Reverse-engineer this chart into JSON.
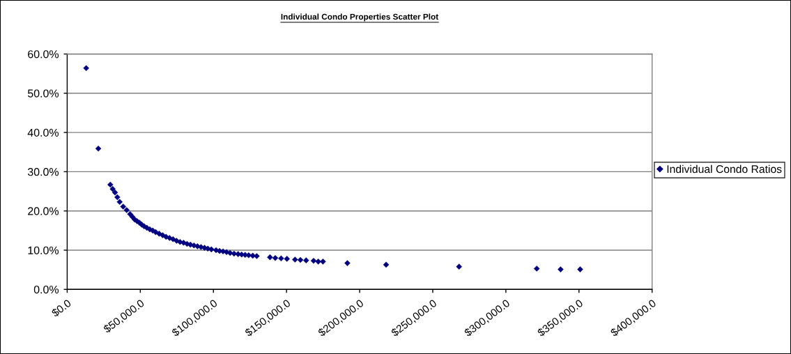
{
  "chart_data": {
    "type": "scatter",
    "title": "Individual Condo Properties Scatter Plot",
    "x": [
      13000,
      21300,
      29500,
      31100,
      32700,
      34300,
      35900,
      38300,
      40700,
      43000,
      44600,
      46200,
      47800,
      49400,
      51000,
      52600,
      54500,
      56500,
      58500,
      60500,
      62900,
      65300,
      67600,
      70000,
      72400,
      74800,
      77200,
      79600,
      82000,
      84300,
      86700,
      89100,
      91500,
      93900,
      96200,
      98600,
      101800,
      104200,
      106600,
      109000,
      111400,
      114100,
      116900,
      119300,
      121700,
      124100,
      126900,
      129600,
      138700,
      142300,
      146300,
      150300,
      155800,
      159500,
      163400,
      168500,
      171700,
      174900,
      191600,
      218100,
      268000,
      321100,
      337400,
      350800
    ],
    "series": [
      {
        "name": "Individual Condo Ratios",
        "color": "#000080",
        "values": [
          56.4,
          35.9,
          26.7,
          25.6,
          24.7,
          23.5,
          22.3,
          21.1,
          20.2,
          19.2,
          18.5,
          17.8,
          17.4,
          17.0,
          16.5,
          16.1,
          15.7,
          15.3,
          15.0,
          14.6,
          14.2,
          13.8,
          13.4,
          13.1,
          12.8,
          12.4,
          12.1,
          11.9,
          11.6,
          11.4,
          11.2,
          11.0,
          10.8,
          10.6,
          10.4,
          10.2,
          10.0,
          9.8,
          9.7,
          9.5,
          9.3,
          9.1,
          9.0,
          8.9,
          8.8,
          8.7,
          8.6,
          8.5,
          8.2,
          8.0,
          7.9,
          7.8,
          7.6,
          7.5,
          7.4,
          7.3,
          7.1,
          7.1,
          6.7,
          6.3,
          5.8,
          5.3,
          5.1,
          5.1
        ]
      }
    ],
    "xlim": [
      0,
      400000
    ],
    "xticks": [
      {
        "value": 0,
        "label": "$0.0"
      },
      {
        "value": 50000,
        "label": "$50,000.0"
      },
      {
        "value": 100000,
        "label": "$100,000.0"
      },
      {
        "value": 150000,
        "label": "$150,000.0"
      },
      {
        "value": 200000,
        "label": "$200,000.0"
      },
      {
        "value": 250000,
        "label": "$250,000.0"
      },
      {
        "value": 300000,
        "label": "$300,000.0"
      },
      {
        "value": 350000,
        "label": "$350,000.0"
      },
      {
        "value": 400000,
        "label": "$400,000.0"
      }
    ],
    "ylim": [
      0,
      60
    ],
    "yticks": [
      {
        "value": 0,
        "label": "0.0%"
      },
      {
        "value": 10,
        "label": "10.0%"
      },
      {
        "value": 20,
        "label": "20.0%"
      },
      {
        "value": 30,
        "label": "30.0%"
      },
      {
        "value": 40,
        "label": "40.0%"
      },
      {
        "value": 50,
        "label": "50.0%"
      },
      {
        "value": 60,
        "label": "60.0%"
      }
    ],
    "grid": "y",
    "legend": "right",
    "marker": "diamond"
  }
}
